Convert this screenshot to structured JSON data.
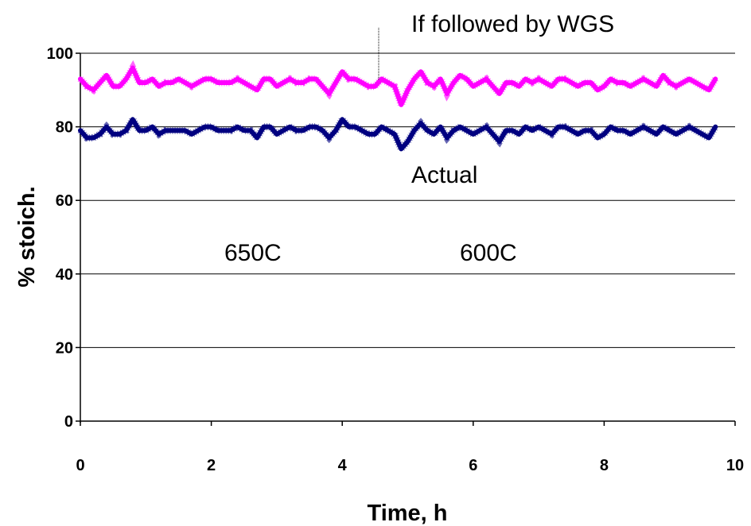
{
  "chart_data": {
    "type": "line",
    "xlabel": "Time, h",
    "ylabel": "% stoich.",
    "xlim": [
      0,
      10
    ],
    "ylim": [
      0,
      100
    ],
    "x_ticks": [
      "0",
      "2",
      "4",
      "6",
      "8",
      "10"
    ],
    "y_ticks": [
      "0",
      "20",
      "40",
      "60",
      "80",
      "100"
    ],
    "grid": "horizontal",
    "series": [
      {
        "label_on_chart": "If followed by WGS",
        "color": "#ff00ff",
        "x": [
          0.0,
          0.1,
          0.2,
          0.3,
          0.4,
          0.5,
          0.6,
          0.7,
          0.8,
          0.9,
          1.0,
          1.1,
          1.2,
          1.3,
          1.4,
          1.5,
          1.6,
          1.7,
          1.8,
          1.9,
          2.0,
          2.1,
          2.2,
          2.3,
          2.4,
          2.5,
          2.6,
          2.7,
          2.8,
          2.9,
          3.0,
          3.1,
          3.2,
          3.3,
          3.4,
          3.5,
          3.6,
          3.7,
          3.8,
          3.9,
          4.0,
          4.1,
          4.2,
          4.3,
          4.4,
          4.5,
          4.6,
          4.7,
          4.8,
          4.9,
          5.0,
          5.1,
          5.2,
          5.3,
          5.4,
          5.5,
          5.6,
          5.7,
          5.8,
          5.9,
          6.0,
          6.1,
          6.2,
          6.3,
          6.4,
          6.5,
          6.6,
          6.7,
          6.8,
          6.9,
          7.0,
          7.1,
          7.2,
          7.3,
          7.4,
          7.5,
          7.6,
          7.7,
          7.8,
          7.9,
          8.0,
          8.1,
          8.2,
          8.3,
          8.4,
          8.5,
          8.6,
          8.7,
          8.8,
          8.9,
          9.0,
          9.1,
          9.2,
          9.3,
          9.4,
          9.5,
          9.6,
          9.7
        ],
        "y": [
          93,
          91,
          90,
          92,
          94,
          91,
          91,
          93,
          96,
          92,
          92,
          93,
          91,
          92,
          92,
          93,
          92,
          91,
          92,
          93,
          93,
          92,
          92,
          92,
          93,
          92,
          91,
          90,
          93,
          93,
          91,
          92,
          93,
          92,
          92,
          93,
          93,
          91,
          89,
          92,
          95,
          93,
          93,
          92,
          91,
          91,
          93,
          92,
          91,
          86,
          90,
          93,
          95,
          92,
          91,
          93,
          89,
          92,
          94,
          93,
          91,
          92,
          93,
          91,
          89,
          92,
          92,
          91,
          93,
          92,
          93,
          92,
          91,
          93,
          93,
          92,
          91,
          92,
          92,
          90,
          91,
          93,
          92,
          92,
          91,
          92,
          93,
          92,
          91,
          94,
          92,
          91,
          92,
          93,
          92,
          91,
          90,
          93
        ]
      },
      {
        "label_on_chart": "Actual",
        "color": "#000080",
        "x": [
          0.0,
          0.1,
          0.2,
          0.3,
          0.4,
          0.5,
          0.6,
          0.7,
          0.8,
          0.9,
          1.0,
          1.1,
          1.2,
          1.3,
          1.4,
          1.5,
          1.6,
          1.7,
          1.8,
          1.9,
          2.0,
          2.1,
          2.2,
          2.3,
          2.4,
          2.5,
          2.6,
          2.7,
          2.8,
          2.9,
          3.0,
          3.1,
          3.2,
          3.3,
          3.4,
          3.5,
          3.6,
          3.7,
          3.8,
          3.9,
          4.0,
          4.1,
          4.2,
          4.3,
          4.4,
          4.5,
          4.6,
          4.7,
          4.8,
          4.9,
          5.0,
          5.1,
          5.2,
          5.3,
          5.4,
          5.5,
          5.6,
          5.7,
          5.8,
          5.9,
          6.0,
          6.1,
          6.2,
          6.3,
          6.4,
          6.5,
          6.6,
          6.7,
          6.8,
          6.9,
          7.0,
          7.1,
          7.2,
          7.3,
          7.4,
          7.5,
          7.6,
          7.7,
          7.8,
          7.9,
          8.0,
          8.1,
          8.2,
          8.3,
          8.4,
          8.5,
          8.6,
          8.7,
          8.8,
          8.9,
          9.0,
          9.1,
          9.2,
          9.3,
          9.4,
          9.5,
          9.6,
          9.7
        ],
        "y": [
          79,
          77,
          77,
          78,
          80,
          78,
          78,
          79,
          82,
          79,
          79,
          80,
          78,
          79,
          79,
          79,
          79,
          78,
          79,
          80,
          80,
          79,
          79,
          79,
          80,
          79,
          79,
          77,
          80,
          80,
          78,
          79,
          80,
          79,
          79,
          80,
          80,
          79,
          77,
          79,
          82,
          80,
          80,
          79,
          78,
          78,
          80,
          79,
          78,
          74,
          76,
          79,
          81,
          79,
          78,
          80,
          77,
          79,
          80,
          79,
          78,
          79,
          80,
          78,
          76,
          79,
          79,
          78,
          80,
          79,
          80,
          79,
          78,
          80,
          80,
          79,
          78,
          79,
          79,
          77,
          78,
          80,
          79,
          79,
          78,
          79,
          80,
          79,
          78,
          80,
          79,
          78,
          79,
          80,
          79,
          78,
          77,
          80
        ]
      }
    ],
    "annotations": [
      "If followed by WGS",
      "Actual",
      "650C",
      "600C"
    ]
  }
}
